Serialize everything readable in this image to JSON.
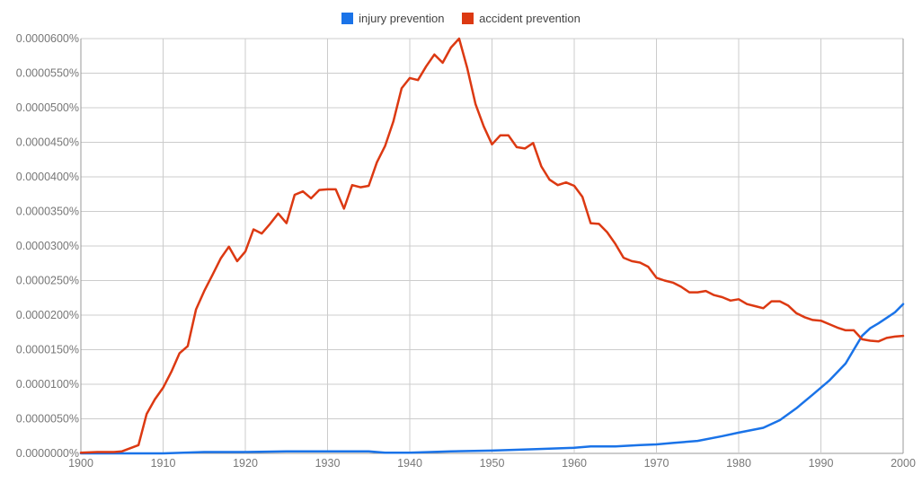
{
  "chart_data": {
    "type": "line",
    "title": "",
    "xlabel": "",
    "ylabel": "",
    "xlim": [
      1900,
      2000
    ],
    "ylim": [
      0,
      6e-05
    ],
    "grid": true,
    "legend_position": "top-center",
    "x_ticks": [
      "1900",
      "1910",
      "1920",
      "1930",
      "1940",
      "1950",
      "1960",
      "1970",
      "1980",
      "1990",
      "2000"
    ],
    "y_ticks": [
      "0.0000000%",
      "0.0000050%",
      "0.0000100%",
      "0.0000150%",
      "0.0000200%",
      "0.0000250%",
      "0.0000300%",
      "0.0000350%",
      "0.0000400%",
      "0.0000450%",
      "0.0000500%",
      "0.0000550%",
      "0.0000600%"
    ],
    "series": [
      {
        "name": "injury prevention",
        "color": "#1a73e8",
        "points": [
          [
            1900,
            0.0
          ],
          [
            1910,
            0.0
          ],
          [
            1915,
            2e-07
          ],
          [
            1920,
            2e-07
          ],
          [
            1925,
            3e-07
          ],
          [
            1930,
            3e-07
          ],
          [
            1935,
            3e-07
          ],
          [
            1937,
            1e-07
          ],
          [
            1940,
            1e-07
          ],
          [
            1945,
            3e-07
          ],
          [
            1950,
            4e-07
          ],
          [
            1955,
            6e-07
          ],
          [
            1960,
            8e-07
          ],
          [
            1962,
            1e-06
          ],
          [
            1965,
            1e-06
          ],
          [
            1968,
            1.2e-06
          ],
          [
            1970,
            1.3e-06
          ],
          [
            1972,
            1.5e-06
          ],
          [
            1975,
            1.8e-06
          ],
          [
            1978,
            2.5e-06
          ],
          [
            1980,
            3e-06
          ],
          [
            1983,
            3.7e-06
          ],
          [
            1985,
            4.8e-06
          ],
          [
            1987,
            6.5e-06
          ],
          [
            1989,
            8.5e-06
          ],
          [
            1991,
            1.05e-05
          ],
          [
            1993,
            1.3e-05
          ],
          [
            1994,
            1.5e-05
          ],
          [
            1995,
            1.7e-05
          ],
          [
            1996,
            1.81e-05
          ],
          [
            1997,
            1.88e-05
          ],
          [
            1998,
            1.96e-05
          ],
          [
            1999,
            2.04e-05
          ],
          [
            2000,
            2.16e-05
          ]
        ]
      },
      {
        "name": "accident prevention",
        "color": "#dc3912",
        "points": [
          [
            1900,
            1e-07
          ],
          [
            1902,
            2e-07
          ],
          [
            1904,
            2e-07
          ],
          [
            1905,
            3e-07
          ],
          [
            1907,
            1.2e-06
          ],
          [
            1908,
            5.7e-06
          ],
          [
            1909,
            7.8e-06
          ],
          [
            1910,
            9.5e-06
          ],
          [
            1911,
            1.18e-05
          ],
          [
            1912,
            1.45e-05
          ],
          [
            1913,
            1.55e-05
          ],
          [
            1914,
            2.08e-05
          ],
          [
            1915,
            2.35e-05
          ],
          [
            1916,
            2.58e-05
          ],
          [
            1917,
            2.82e-05
          ],
          [
            1918,
            2.99e-05
          ],
          [
            1919,
            2.78e-05
          ],
          [
            1920,
            2.92e-05
          ],
          [
            1921,
            3.24e-05
          ],
          [
            1922,
            3.18e-05
          ],
          [
            1923,
            3.32e-05
          ],
          [
            1924,
            3.47e-05
          ],
          [
            1925,
            3.33e-05
          ],
          [
            1926,
            3.74e-05
          ],
          [
            1927,
            3.79e-05
          ],
          [
            1928,
            3.69e-05
          ],
          [
            1929,
            3.81e-05
          ],
          [
            1930,
            3.82e-05
          ],
          [
            1931,
            3.82e-05
          ],
          [
            1932,
            3.54e-05
          ],
          [
            1933,
            3.88e-05
          ],
          [
            1934,
            3.85e-05
          ],
          [
            1935,
            3.87e-05
          ],
          [
            1936,
            4.21e-05
          ],
          [
            1937,
            4.45e-05
          ],
          [
            1938,
            4.8e-05
          ],
          [
            1939,
            5.28e-05
          ],
          [
            1940,
            5.43e-05
          ],
          [
            1941,
            5.4e-05
          ],
          [
            1942,
            5.6e-05
          ],
          [
            1943,
            5.77e-05
          ],
          [
            1944,
            5.65e-05
          ],
          [
            1945,
            5.87e-05
          ],
          [
            1946,
            6e-05
          ],
          [
            1947,
            5.57e-05
          ],
          [
            1948,
            5.05e-05
          ],
          [
            1949,
            4.73e-05
          ],
          [
            1950,
            4.47e-05
          ],
          [
            1951,
            4.6e-05
          ],
          [
            1952,
            4.6e-05
          ],
          [
            1953,
            4.43e-05
          ],
          [
            1954,
            4.41e-05
          ],
          [
            1955,
            4.49e-05
          ],
          [
            1956,
            4.15e-05
          ],
          [
            1957,
            3.96e-05
          ],
          [
            1958,
            3.88e-05
          ],
          [
            1959,
            3.92e-05
          ],
          [
            1960,
            3.87e-05
          ],
          [
            1961,
            3.71e-05
          ],
          [
            1962,
            3.33e-05
          ],
          [
            1963,
            3.32e-05
          ],
          [
            1964,
            3.2e-05
          ],
          [
            1965,
            3.03e-05
          ],
          [
            1966,
            2.83e-05
          ],
          [
            1967,
            2.78e-05
          ],
          [
            1968,
            2.76e-05
          ],
          [
            1969,
            2.7e-05
          ],
          [
            1970,
            2.54e-05
          ],
          [
            1971,
            2.5e-05
          ],
          [
            1972,
            2.47e-05
          ],
          [
            1973,
            2.41e-05
          ],
          [
            1974,
            2.33e-05
          ],
          [
            1975,
            2.33e-05
          ],
          [
            1976,
            2.35e-05
          ],
          [
            1977,
            2.29e-05
          ],
          [
            1978,
            2.26e-05
          ],
          [
            1979,
            2.21e-05
          ],
          [
            1980,
            2.23e-05
          ],
          [
            1981,
            2.16e-05
          ],
          [
            1982,
            2.13e-05
          ],
          [
            1983,
            2.1e-05
          ],
          [
            1984,
            2.2e-05
          ],
          [
            1985,
            2.2e-05
          ],
          [
            1986,
            2.14e-05
          ],
          [
            1987,
            2.03e-05
          ],
          [
            1988,
            1.97e-05
          ],
          [
            1989,
            1.93e-05
          ],
          [
            1990,
            1.92e-05
          ],
          [
            1991,
            1.87e-05
          ],
          [
            1992,
            1.82e-05
          ],
          [
            1993,
            1.78e-05
          ],
          [
            1994,
            1.78e-05
          ],
          [
            1995,
            1.65e-05
          ],
          [
            1996,
            1.63e-05
          ],
          [
            1997,
            1.62e-05
          ],
          [
            1998,
            1.67e-05
          ],
          [
            1999,
            1.69e-05
          ],
          [
            2000,
            1.7e-05
          ]
        ]
      }
    ]
  }
}
